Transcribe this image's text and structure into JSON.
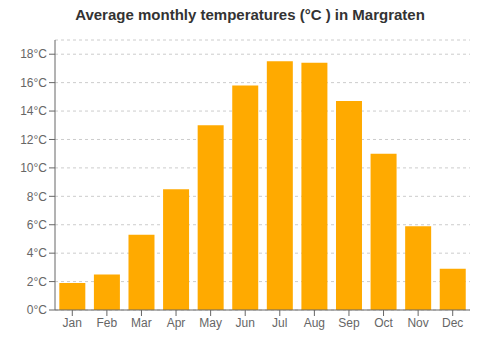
{
  "chart_data": {
    "type": "bar",
    "title": "Average monthly temperatures (°C ) in Margraten",
    "categories": [
      "Jan",
      "Feb",
      "Mar",
      "Apr",
      "May",
      "Jun",
      "Jul",
      "Aug",
      "Sep",
      "Oct",
      "Nov",
      "Dec"
    ],
    "values": [
      1.9,
      2.5,
      5.3,
      8.5,
      13.0,
      15.8,
      17.5,
      17.4,
      14.7,
      11.0,
      5.9,
      2.9
    ],
    "color": "#FFAA00",
    "ylim": [
      0,
      19
    ],
    "yticks": [
      {
        "value": 0,
        "label": "0°C"
      },
      {
        "value": 2,
        "label": "2°C"
      },
      {
        "value": 4,
        "label": "4°C"
      },
      {
        "value": 6,
        "label": "6°C"
      },
      {
        "value": 8,
        "label": "8°C"
      },
      {
        "value": 10,
        "label": "10°C"
      },
      {
        "value": 12,
        "label": "12°C"
      },
      {
        "value": 14,
        "label": "14°C"
      },
      {
        "value": 16,
        "label": "16°C"
      },
      {
        "value": 18,
        "label": "18°C"
      }
    ],
    "grid": true
  }
}
